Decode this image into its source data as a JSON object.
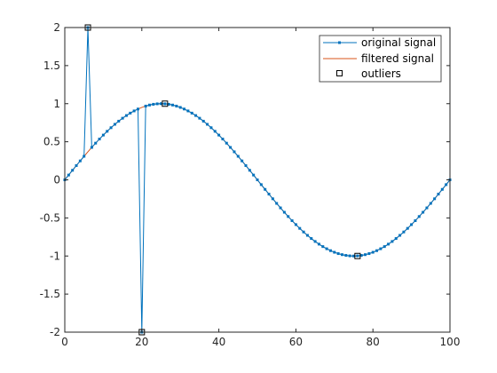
{
  "chart_data": {
    "type": "line",
    "title": "",
    "xlabel": "",
    "ylabel": "",
    "xlim": [
      0,
      100
    ],
    "ylim": [
      -2,
      2
    ],
    "xticks": [
      0,
      20,
      40,
      60,
      80,
      100
    ],
    "yticks": [
      -2,
      -1.5,
      -1,
      -0.5,
      0,
      0.5,
      1,
      1.5,
      2
    ],
    "grid": false,
    "legend_position": "top-right",
    "signal": {
      "description": "sin(2*pi*x/100) sampled at integers 0..100",
      "period": 100,
      "amplitude": 1
    },
    "series": [
      {
        "name": "original signal",
        "color": "#0072BD",
        "marker": "small-square",
        "modified_points": [
          {
            "x": 6,
            "y": 2
          },
          {
            "x": 20,
            "y": -2
          }
        ]
      },
      {
        "name": "filtered signal",
        "color": "#D95319",
        "marker": "none"
      },
      {
        "name": "outliers",
        "color": "#000000",
        "marker": "open-square",
        "points": [
          {
            "x": 6,
            "y": 2
          },
          {
            "x": 20,
            "y": -2
          },
          {
            "x": 26,
            "y": 1
          },
          {
            "x": 76,
            "y": -1
          }
        ]
      }
    ]
  }
}
